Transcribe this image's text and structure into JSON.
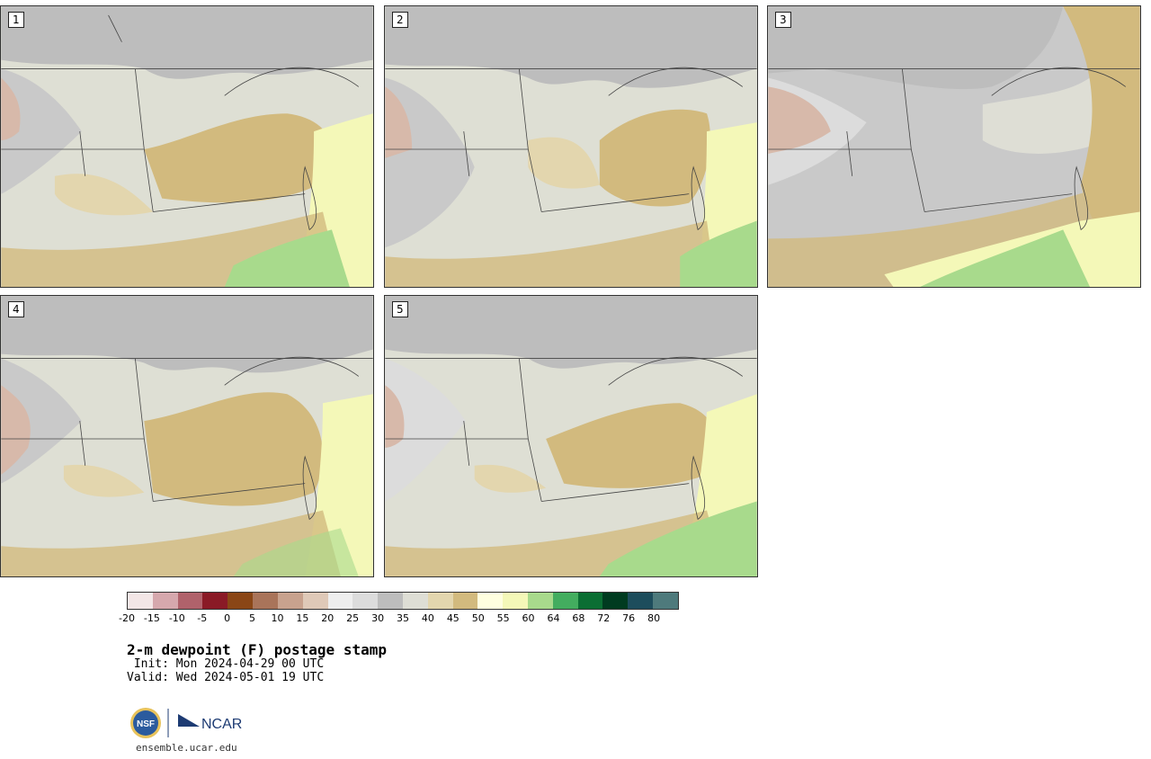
{
  "panels": [
    {
      "label": "1"
    },
    {
      "label": "2"
    },
    {
      "label": "3"
    },
    {
      "label": "4"
    },
    {
      "label": "5"
    }
  ],
  "colorbar": {
    "colors": [
      "#f3e6e6",
      "#d6a8ad",
      "#b0626b",
      "#8a1a26",
      "#8a4616",
      "#a9745a",
      "#c8a28e",
      "#dfc9b8",
      "#eeeeee",
      "#dcdcdc",
      "#bdbdbd",
      "#deded5",
      "#e3d6ae",
      "#d2ba7e",
      "#ffffe0",
      "#f4f8b8",
      "#a8da8c",
      "#43ad5f",
      "#0b6e33",
      "#003b20",
      "#1d4d5c",
      "#4e7a7c"
    ],
    "tick_labels": [
      "-20",
      "-15",
      "-10",
      "-5",
      "0",
      "5",
      "10",
      "15",
      "20",
      "25",
      "30",
      "35",
      "40",
      "45",
      "50",
      "55",
      "60",
      "64",
      "68",
      "72",
      "76",
      "80"
    ]
  },
  "header": {
    "title": "2-m dewpoint (F) postage stamp",
    "init": " Init: Mon 2024-04-29 00 UTC",
    "valid": "Valid: Wed 2024-05-01 19 UTC"
  },
  "logos": {
    "nsf": "NSF",
    "ncar": "NCAR"
  },
  "footer": {
    "site": "ensemble.ucar.edu"
  }
}
